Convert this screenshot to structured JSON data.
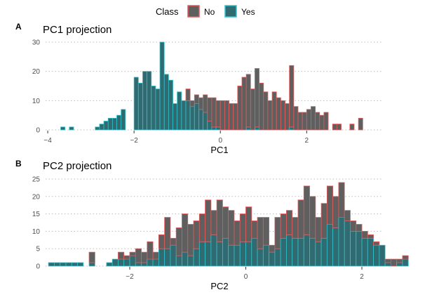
{
  "legend": {
    "title": "Class",
    "entries": [
      {
        "label": "No",
        "fill": "#5f5f5f",
        "stroke": "#e8595a"
      },
      {
        "label": "Yes",
        "fill": "#2f6b70",
        "stroke": "#33c2cc"
      }
    ]
  },
  "colors": {
    "no_fill": "#5f5f5f",
    "no_stroke": "#e8595a",
    "yes_fill": "#2f6b70",
    "yes_stroke": "#33c2cc",
    "grid": "#bdbdbd",
    "axis_text": "#4d4d4d"
  },
  "chart_data": [
    {
      "type": "bar",
      "stacked": true,
      "panel_tag": "A",
      "title": "PC1 projection",
      "xlabel": "PC1",
      "ylabel": "",
      "xlim": [
        -4.05,
        3.75
      ],
      "ylim": [
        0,
        30
      ],
      "xticks": [
        -4,
        -2,
        0,
        2
      ],
      "xtick_labels": [
        "−4",
        "−2",
        "0",
        "2"
      ],
      "yticks": [
        0,
        10,
        20,
        30
      ],
      "ytick_labels": [
        "0",
        "10",
        "20",
        "30"
      ],
      "grid": "horizontal dotted",
      "bin_start": -3.7,
      "bin_width": 0.1,
      "series": [
        {
          "name": "Yes",
          "values": [
            1,
            0,
            1,
            0,
            0,
            0,
            0,
            0,
            1,
            2,
            3,
            4,
            4,
            5,
            7,
            0,
            0,
            18,
            16,
            20,
            20,
            15,
            14,
            30,
            19,
            17,
            9,
            13,
            10,
            10,
            8,
            9,
            7,
            6,
            3,
            1,
            1,
            0,
            0,
            0,
            0,
            0,
            0,
            1,
            0,
            1,
            0,
            0,
            0,
            0,
            0,
            0,
            0,
            1,
            0,
            0,
            0,
            0,
            0,
            0,
            0,
            0,
            0,
            0,
            0,
            0,
            0,
            0,
            0,
            0,
            0,
            0
          ]
        },
        {
          "name": "No",
          "values": [
            0,
            0,
            0,
            0,
            0,
            0,
            0,
            0,
            0,
            0,
            0,
            0,
            0,
            0,
            0,
            0,
            0,
            0,
            0,
            0,
            0,
            0,
            0,
            0,
            0,
            0,
            0,
            0,
            0,
            4,
            2,
            3,
            4,
            6,
            8,
            10,
            9,
            10,
            10,
            9,
            9,
            15,
            18,
            18,
            14,
            20,
            16,
            13,
            10,
            13,
            11,
            10,
            9,
            21,
            8,
            6,
            6,
            7,
            8,
            6,
            5,
            6,
            0,
            2,
            2,
            0,
            0,
            2,
            0,
            4,
            0,
            0
          ]
        }
      ]
    },
    {
      "type": "bar",
      "stacked": true,
      "panel_tag": "B",
      "title": "PC2 projection",
      "xlabel": "PC2",
      "ylabel": "",
      "xlim": [
        -3.45,
        2.35
      ],
      "ylim": [
        0,
        25
      ],
      "xticks": [
        -2,
        0,
        2
      ],
      "xtick_labels": [
        "−2",
        "0",
        "2"
      ],
      "yticks": [
        0,
        5,
        10,
        15,
        20,
        25
      ],
      "ytick_labels": [
        "0",
        "5",
        "10",
        "15",
        "20",
        "25"
      ],
      "grid": "horizontal dotted",
      "bin_start": -3.4,
      "bin_width": 0.1,
      "series": [
        {
          "name": "Yes",
          "values": [
            1,
            1,
            1,
            1,
            1,
            1,
            0,
            1,
            0,
            0,
            1,
            2,
            2,
            2,
            3,
            1,
            1,
            2,
            2,
            5,
            5,
            6,
            3,
            4,
            3,
            5,
            7,
            7,
            9,
            7,
            8,
            6,
            6,
            7,
            7,
            8,
            5,
            6,
            4,
            5,
            8,
            9,
            8,
            8,
            9,
            8,
            7,
            8,
            12,
            11,
            14,
            13,
            10,
            10,
            8,
            8,
            6,
            6,
            1,
            0,
            1,
            2,
            0,
            0,
            0,
            0,
            0,
            0
          ]
        },
        {
          "name": "No",
          "values": [
            0,
            0,
            0,
            0,
            0,
            0,
            0,
            3,
            0,
            0,
            0,
            0,
            2,
            1,
            1,
            4,
            3,
            5,
            2,
            4,
            9,
            2,
            8,
            11,
            9,
            8,
            8,
            12,
            7,
            12,
            9,
            10,
            7,
            8,
            10,
            5,
            9,
            8,
            2,
            9,
            7,
            7,
            6,
            11,
            14,
            12,
            7,
            10,
            11,
            9,
            10,
            3,
            3,
            2,
            2,
            1,
            1,
            0,
            1,
            2,
            1,
            1,
            0,
            0,
            0,
            0,
            0,
            0
          ]
        }
      ]
    }
  ]
}
